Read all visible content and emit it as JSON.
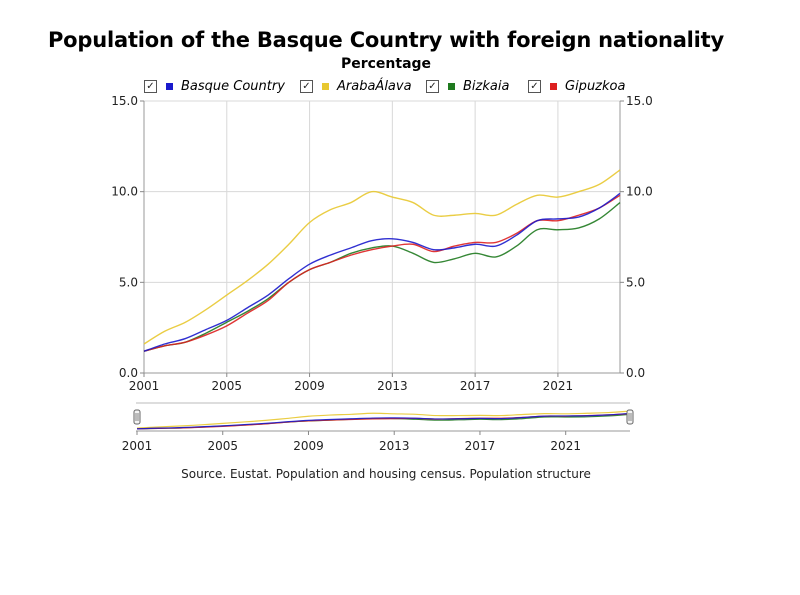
{
  "title": "Population of the Basque Country with foreign nationality",
  "subtitle": "Percentage",
  "source": "Source. Eustat. Population and housing census. Population structure",
  "legend": [
    {
      "label": "Basque Country",
      "color": "#1a1acc",
      "checked": true,
      "icon": "checkbox-icon"
    },
    {
      "label": "ArabaÁlava",
      "color": "#e8c830",
      "checked": true,
      "icon": "checkbox-icon"
    },
    {
      "label": "Bizkaia",
      "color": "#1f7a1f",
      "checked": true,
      "icon": "checkbox-icon"
    },
    {
      "label": "Gipuzkoa",
      "color": "#dd2020",
      "checked": true,
      "icon": "checkbox-icon"
    }
  ],
  "chart_data": {
    "type": "line",
    "title": "Population of the Basque Country with foreign nationality",
    "subtitle": "Percentage",
    "xlabel": "",
    "ylabel": "",
    "x": [
      2001,
      2002,
      2003,
      2004,
      2005,
      2006,
      2007,
      2008,
      2009,
      2010,
      2011,
      2012,
      2013,
      2014,
      2015,
      2016,
      2017,
      2018,
      2019,
      2020,
      2021,
      2022,
      2023,
      2024
    ],
    "xlim": [
      2001,
      2024
    ],
    "ylim": [
      0,
      15
    ],
    "yticks": [
      "0.0",
      "5.0",
      "10.0",
      "15.0"
    ],
    "xticks": [
      "2001",
      "2005",
      "2009",
      "2013",
      "2017",
      "2021"
    ],
    "grid": true,
    "legend_position": "top",
    "y_axis_both_sides": true,
    "navigator": true,
    "series": [
      {
        "name": "Basque Country",
        "color": "#1a1acc",
        "values": [
          1.2,
          1.6,
          1.9,
          2.4,
          2.9,
          3.6,
          4.3,
          5.2,
          6.0,
          6.5,
          6.9,
          7.3,
          7.4,
          7.2,
          6.8,
          6.9,
          7.1,
          7.0,
          7.6,
          8.4,
          8.5,
          8.6,
          9.1,
          9.9
        ]
      },
      {
        "name": "ArabaÁlava",
        "color": "#e8c830",
        "values": [
          1.6,
          2.3,
          2.8,
          3.5,
          4.3,
          5.1,
          6.0,
          7.1,
          8.3,
          9.0,
          9.4,
          10.0,
          9.7,
          9.4,
          8.7,
          8.7,
          8.8,
          8.7,
          9.3,
          9.8,
          9.7,
          10.0,
          10.4,
          11.2
        ]
      },
      {
        "name": "Bizkaia",
        "color": "#1f7a1f",
        "values": [
          1.2,
          1.5,
          1.7,
          2.2,
          2.8,
          3.4,
          4.1,
          5.0,
          5.7,
          6.1,
          6.6,
          6.9,
          7.0,
          6.6,
          6.1,
          6.3,
          6.6,
          6.4,
          7.0,
          7.9,
          7.9,
          8.0,
          8.5,
          9.4
        ]
      },
      {
        "name": "Gipuzkoa",
        "color": "#dd2020",
        "values": [
          1.2,
          1.5,
          1.7,
          2.1,
          2.6,
          3.3,
          4.0,
          5.0,
          5.7,
          6.1,
          6.5,
          6.8,
          7.0,
          7.1,
          6.7,
          7.0,
          7.2,
          7.2,
          7.7,
          8.4,
          8.4,
          8.7,
          9.1,
          9.8
        ]
      }
    ]
  }
}
